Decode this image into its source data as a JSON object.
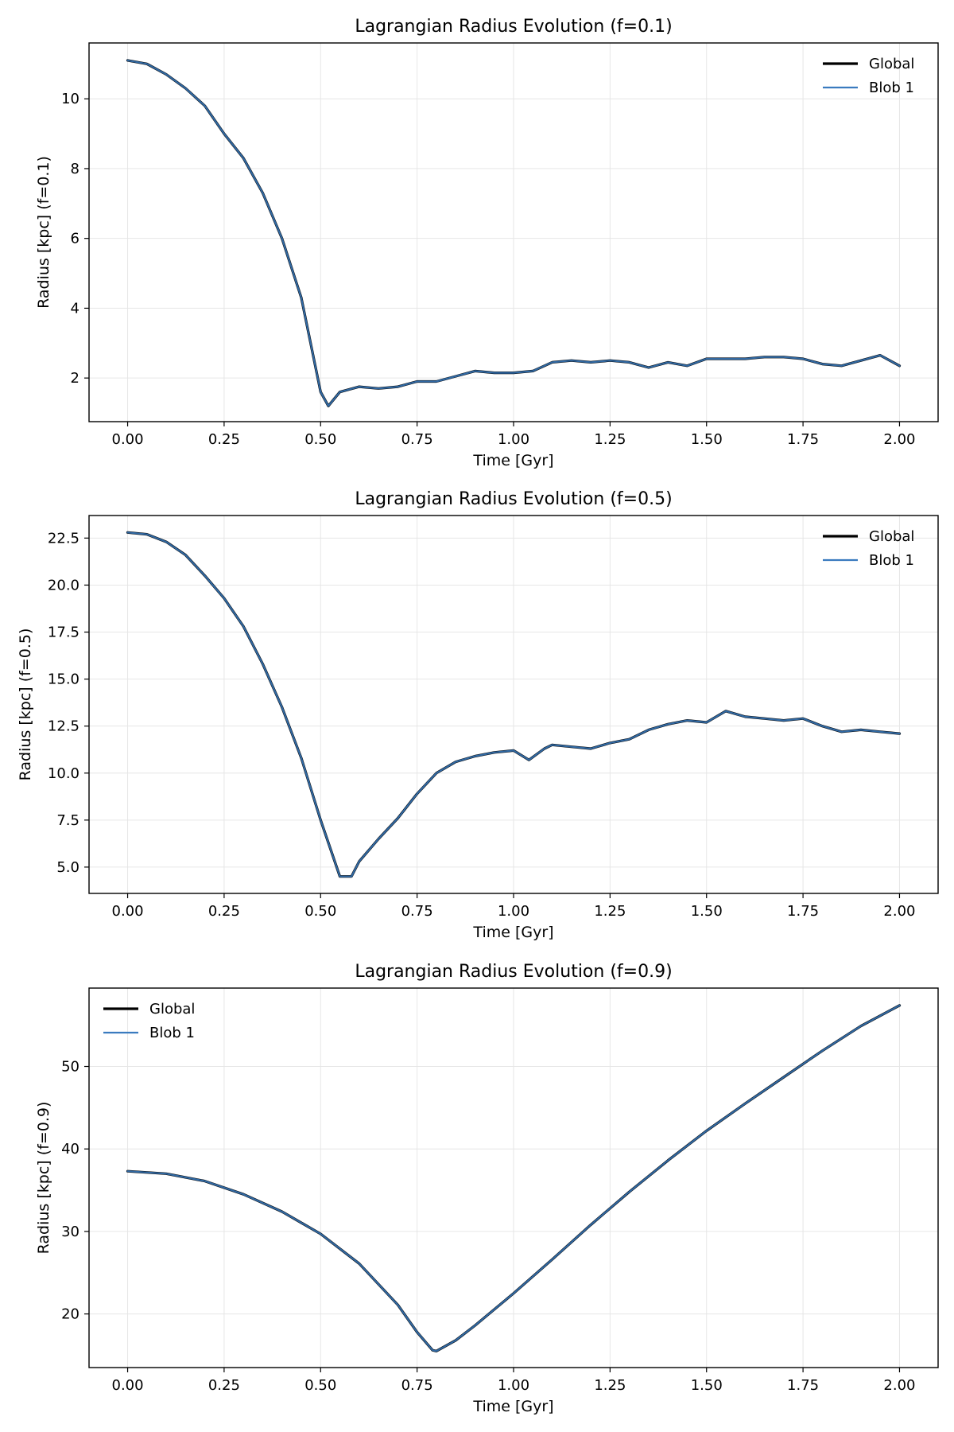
{
  "chart_data": [
    {
      "type": "line",
      "title": "Lagrangian Radius Evolution (f=0.1)",
      "xlabel": "Time [Gyr]",
      "ylabel": "Radius [kpc] (f=0.1)",
      "xlim": [
        -0.1,
        2.1
      ],
      "ylim": [
        0.75,
        11.6
      ],
      "xticks": [
        "0.00",
        "0.25",
        "0.50",
        "0.75",
        "1.00",
        "1.25",
        "1.50",
        "1.75",
        "2.00"
      ],
      "yticks": [
        "2",
        "4",
        "6",
        "8",
        "10"
      ],
      "grid": true,
      "legend_position": "top-right",
      "legend": [
        "Global",
        "Blob 1"
      ],
      "series": [
        {
          "name": "Global",
          "color": "#000000",
          "x": [
            0.0,
            0.05,
            0.1,
            0.15,
            0.2,
            0.25,
            0.3,
            0.35,
            0.4,
            0.45,
            0.5,
            0.52,
            0.55,
            0.6,
            0.65,
            0.7,
            0.75,
            0.8,
            0.85,
            0.9,
            0.95,
            1.0,
            1.05,
            1.1,
            1.15,
            1.2,
            1.25,
            1.3,
            1.35,
            1.4,
            1.45,
            1.5,
            1.55,
            1.6,
            1.65,
            1.7,
            1.75,
            1.8,
            1.85,
            1.9,
            1.95,
            2.0
          ],
          "y": [
            11.1,
            11.0,
            10.7,
            10.3,
            9.8,
            9.0,
            8.3,
            7.3,
            6.0,
            4.3,
            1.6,
            1.2,
            1.6,
            1.75,
            1.7,
            1.75,
            1.9,
            1.9,
            2.05,
            2.2,
            2.15,
            2.15,
            2.2,
            2.45,
            2.5,
            2.45,
            2.5,
            2.45,
            2.3,
            2.45,
            2.35,
            2.55,
            2.55,
            2.55,
            2.6,
            2.6,
            2.55,
            2.4,
            2.35,
            2.5,
            2.65,
            2.35
          ]
        },
        {
          "name": "Blob 1",
          "color": "#3a7bbf",
          "x": [
            0.0,
            0.05,
            0.1,
            0.15,
            0.2,
            0.25,
            0.3,
            0.35,
            0.4,
            0.45,
            0.5,
            0.52,
            0.55,
            0.6,
            0.65,
            0.7,
            0.75,
            0.8,
            0.85,
            0.9,
            0.95,
            1.0,
            1.05,
            1.1,
            1.15,
            1.2,
            1.25,
            1.3,
            1.35,
            1.4,
            1.45,
            1.5,
            1.55,
            1.6,
            1.65,
            1.7,
            1.75,
            1.8,
            1.85,
            1.9,
            1.95,
            2.0
          ],
          "y": [
            11.1,
            11.0,
            10.7,
            10.3,
            9.8,
            9.0,
            8.3,
            7.3,
            6.0,
            4.3,
            1.6,
            1.2,
            1.6,
            1.75,
            1.7,
            1.75,
            1.9,
            1.9,
            2.05,
            2.2,
            2.15,
            2.15,
            2.2,
            2.45,
            2.5,
            2.45,
            2.5,
            2.45,
            2.3,
            2.45,
            2.35,
            2.55,
            2.55,
            2.55,
            2.6,
            2.6,
            2.55,
            2.4,
            2.35,
            2.5,
            2.65,
            2.35
          ]
        }
      ]
    },
    {
      "type": "line",
      "title": "Lagrangian Radius Evolution (f=0.5)",
      "xlabel": "Time [Gyr]",
      "ylabel": "Radius [kpc] (f=0.5)",
      "xlim": [
        -0.1,
        2.1
      ],
      "ylim": [
        3.6,
        23.7
      ],
      "xticks": [
        "0.00",
        "0.25",
        "0.50",
        "0.75",
        "1.00",
        "1.25",
        "1.50",
        "1.75",
        "2.00"
      ],
      "yticks": [
        "5.0",
        "7.5",
        "10.0",
        "12.5",
        "15.0",
        "17.5",
        "20.0",
        "22.5"
      ],
      "grid": true,
      "legend_position": "top-right",
      "legend": [
        "Global",
        "Blob 1"
      ],
      "series": [
        {
          "name": "Global",
          "color": "#000000",
          "x": [
            0.0,
            0.05,
            0.1,
            0.15,
            0.2,
            0.25,
            0.3,
            0.35,
            0.4,
            0.45,
            0.5,
            0.55,
            0.58,
            0.6,
            0.65,
            0.7,
            0.75,
            0.8,
            0.85,
            0.9,
            0.95,
            1.0,
            1.04,
            1.08,
            1.1,
            1.15,
            1.2,
            1.25,
            1.3,
            1.35,
            1.4,
            1.45,
            1.5,
            1.55,
            1.6,
            1.65,
            1.7,
            1.75,
            1.8,
            1.85,
            1.9,
            1.95,
            2.0
          ],
          "y": [
            22.8,
            22.7,
            22.3,
            21.6,
            20.5,
            19.3,
            17.8,
            15.8,
            13.5,
            10.8,
            7.5,
            4.5,
            4.5,
            5.3,
            6.5,
            7.6,
            8.9,
            10.0,
            10.6,
            10.9,
            11.1,
            11.2,
            10.7,
            11.3,
            11.5,
            11.4,
            11.3,
            11.6,
            11.8,
            12.3,
            12.6,
            12.8,
            12.7,
            13.3,
            13.0,
            12.9,
            12.8,
            12.9,
            12.5,
            12.2,
            12.3,
            12.2,
            12.1
          ]
        },
        {
          "name": "Blob 1",
          "color": "#3a7bbf",
          "x": [
            0.0,
            0.05,
            0.1,
            0.15,
            0.2,
            0.25,
            0.3,
            0.35,
            0.4,
            0.45,
            0.5,
            0.55,
            0.58,
            0.6,
            0.65,
            0.7,
            0.75,
            0.8,
            0.85,
            0.9,
            0.95,
            1.0,
            1.04,
            1.08,
            1.1,
            1.15,
            1.2,
            1.25,
            1.3,
            1.35,
            1.4,
            1.45,
            1.5,
            1.55,
            1.6,
            1.65,
            1.7,
            1.75,
            1.8,
            1.85,
            1.9,
            1.95,
            2.0
          ],
          "y": [
            22.8,
            22.7,
            22.3,
            21.6,
            20.5,
            19.3,
            17.8,
            15.8,
            13.5,
            10.8,
            7.5,
            4.5,
            4.5,
            5.3,
            6.5,
            7.6,
            8.9,
            10.0,
            10.6,
            10.9,
            11.1,
            11.2,
            10.7,
            11.3,
            11.5,
            11.4,
            11.3,
            11.6,
            11.8,
            12.3,
            12.6,
            12.8,
            12.7,
            13.3,
            13.0,
            12.9,
            12.8,
            12.9,
            12.5,
            12.2,
            12.3,
            12.2,
            12.1
          ]
        }
      ]
    },
    {
      "type": "line",
      "title": "Lagrangian Radius Evolution (f=0.9)",
      "xlabel": "Time [Gyr]",
      "ylabel": "Radius [kpc] (f=0.9)",
      "xlim": [
        -0.1,
        2.1
      ],
      "ylim": [
        13.5,
        59.5
      ],
      "xticks": [
        "0.00",
        "0.25",
        "0.50",
        "0.75",
        "1.00",
        "1.25",
        "1.50",
        "1.75",
        "2.00"
      ],
      "yticks": [
        "20",
        "30",
        "40",
        "50"
      ],
      "grid": true,
      "legend_position": "top-left",
      "legend": [
        "Global",
        "Blob 1"
      ],
      "series": [
        {
          "name": "Global",
          "color": "#000000",
          "x": [
            0.0,
            0.1,
            0.2,
            0.3,
            0.4,
            0.5,
            0.6,
            0.7,
            0.75,
            0.79,
            0.8,
            0.85,
            0.9,
            1.0,
            1.1,
            1.2,
            1.3,
            1.4,
            1.5,
            1.6,
            1.7,
            1.8,
            1.9,
            2.0
          ],
          "y": [
            37.3,
            37.0,
            36.1,
            34.5,
            32.4,
            29.7,
            26.1,
            21.1,
            17.8,
            15.6,
            15.5,
            16.8,
            18.6,
            22.5,
            26.6,
            30.8,
            34.8,
            38.6,
            42.2,
            45.5,
            48.7,
            51.9,
            54.9,
            57.4
          ]
        },
        {
          "name": "Blob 1",
          "color": "#3a7bbf",
          "x": [
            0.0,
            0.1,
            0.2,
            0.3,
            0.4,
            0.5,
            0.6,
            0.7,
            0.75,
            0.79,
            0.8,
            0.85,
            0.9,
            1.0,
            1.1,
            1.2,
            1.3,
            1.4,
            1.5,
            1.6,
            1.7,
            1.8,
            1.9,
            2.0
          ],
          "y": [
            37.3,
            37.0,
            36.1,
            34.5,
            32.4,
            29.7,
            26.1,
            21.1,
            17.8,
            15.6,
            15.5,
            16.8,
            18.6,
            22.5,
            26.6,
            30.8,
            34.8,
            38.6,
            42.2,
            45.5,
            48.7,
            51.9,
            54.9,
            57.4
          ]
        }
      ]
    }
  ]
}
